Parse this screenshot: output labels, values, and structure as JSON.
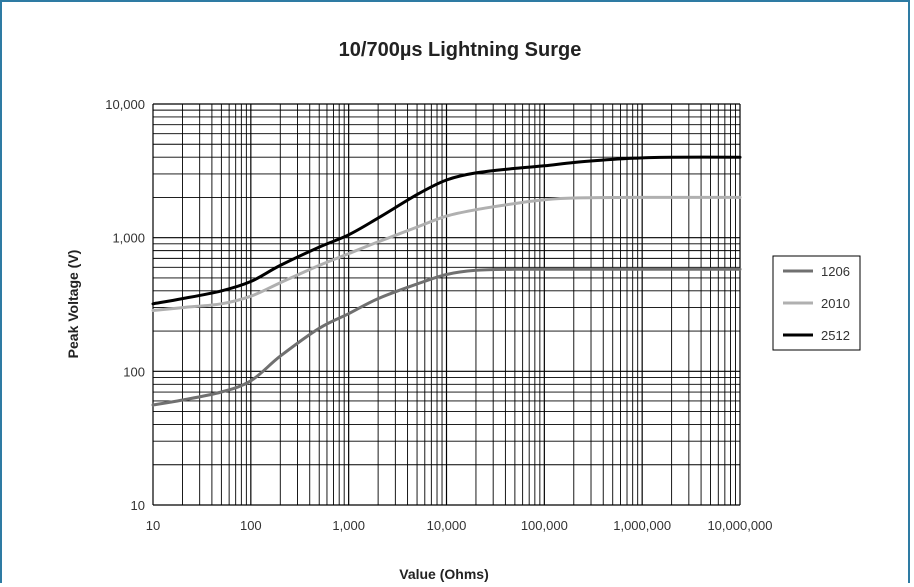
{
  "colors": {
    "frame": "#2e7ba3",
    "grid": "#000000",
    "series_1206": "#707070",
    "series_2010": "#b0b0b0",
    "series_2512": "#000000"
  },
  "chart_data": {
    "type": "line",
    "title": "10/700µs Lightning Surge",
    "xlabel": "Value (Ohms)",
    "ylabel": "Peak Voltage (V)",
    "xscale": "log",
    "yscale": "log",
    "xlim": [
      10,
      10000000
    ],
    "ylim": [
      10,
      10000
    ],
    "grid": true,
    "legend_position": "right",
    "x_ticks": [
      10,
      100,
      1000,
      10000,
      100000,
      1000000,
      10000000
    ],
    "x_tick_labels": [
      "10",
      "100",
      "1,000",
      "10,000",
      "100,000",
      "1,000,000",
      "10,000,000"
    ],
    "y_ticks": [
      10,
      100,
      1000,
      10000
    ],
    "y_tick_labels": [
      "10",
      "100",
      "1,000",
      "10,000"
    ],
    "series": [
      {
        "name": "1206",
        "color": "#707070",
        "x": [
          10,
          20,
          50,
          100,
          200,
          500,
          1000,
          2000,
          5000,
          10000,
          20000,
          50000,
          100000,
          1000000,
          10000000
        ],
        "y": [
          56,
          61,
          70,
          85,
          130,
          210,
          270,
          350,
          450,
          530,
          570,
          580,
          580,
          580,
          580
        ]
      },
      {
        "name": "2010",
        "color": "#b0b0b0",
        "x": [
          10,
          20,
          50,
          100,
          200,
          500,
          1000,
          2000,
          5000,
          10000,
          20000,
          50000,
          100000,
          200000,
          1000000,
          10000000
        ],
        "y": [
          285,
          300,
          320,
          365,
          460,
          620,
          760,
          930,
          1200,
          1450,
          1620,
          1800,
          1920,
          1980,
          2000,
          2000
        ]
      },
      {
        "name": "2512",
        "color": "#000000",
        "x": [
          10,
          20,
          50,
          100,
          200,
          500,
          1000,
          2000,
          5000,
          10000,
          20000,
          50000,
          100000,
          200000,
          500000,
          1000000,
          2000000,
          10000000
        ],
        "y": [
          320,
          350,
          400,
          470,
          620,
          850,
          1050,
          1400,
          2100,
          2700,
          3050,
          3300,
          3450,
          3650,
          3850,
          3950,
          4000,
          4000
        ]
      }
    ]
  }
}
